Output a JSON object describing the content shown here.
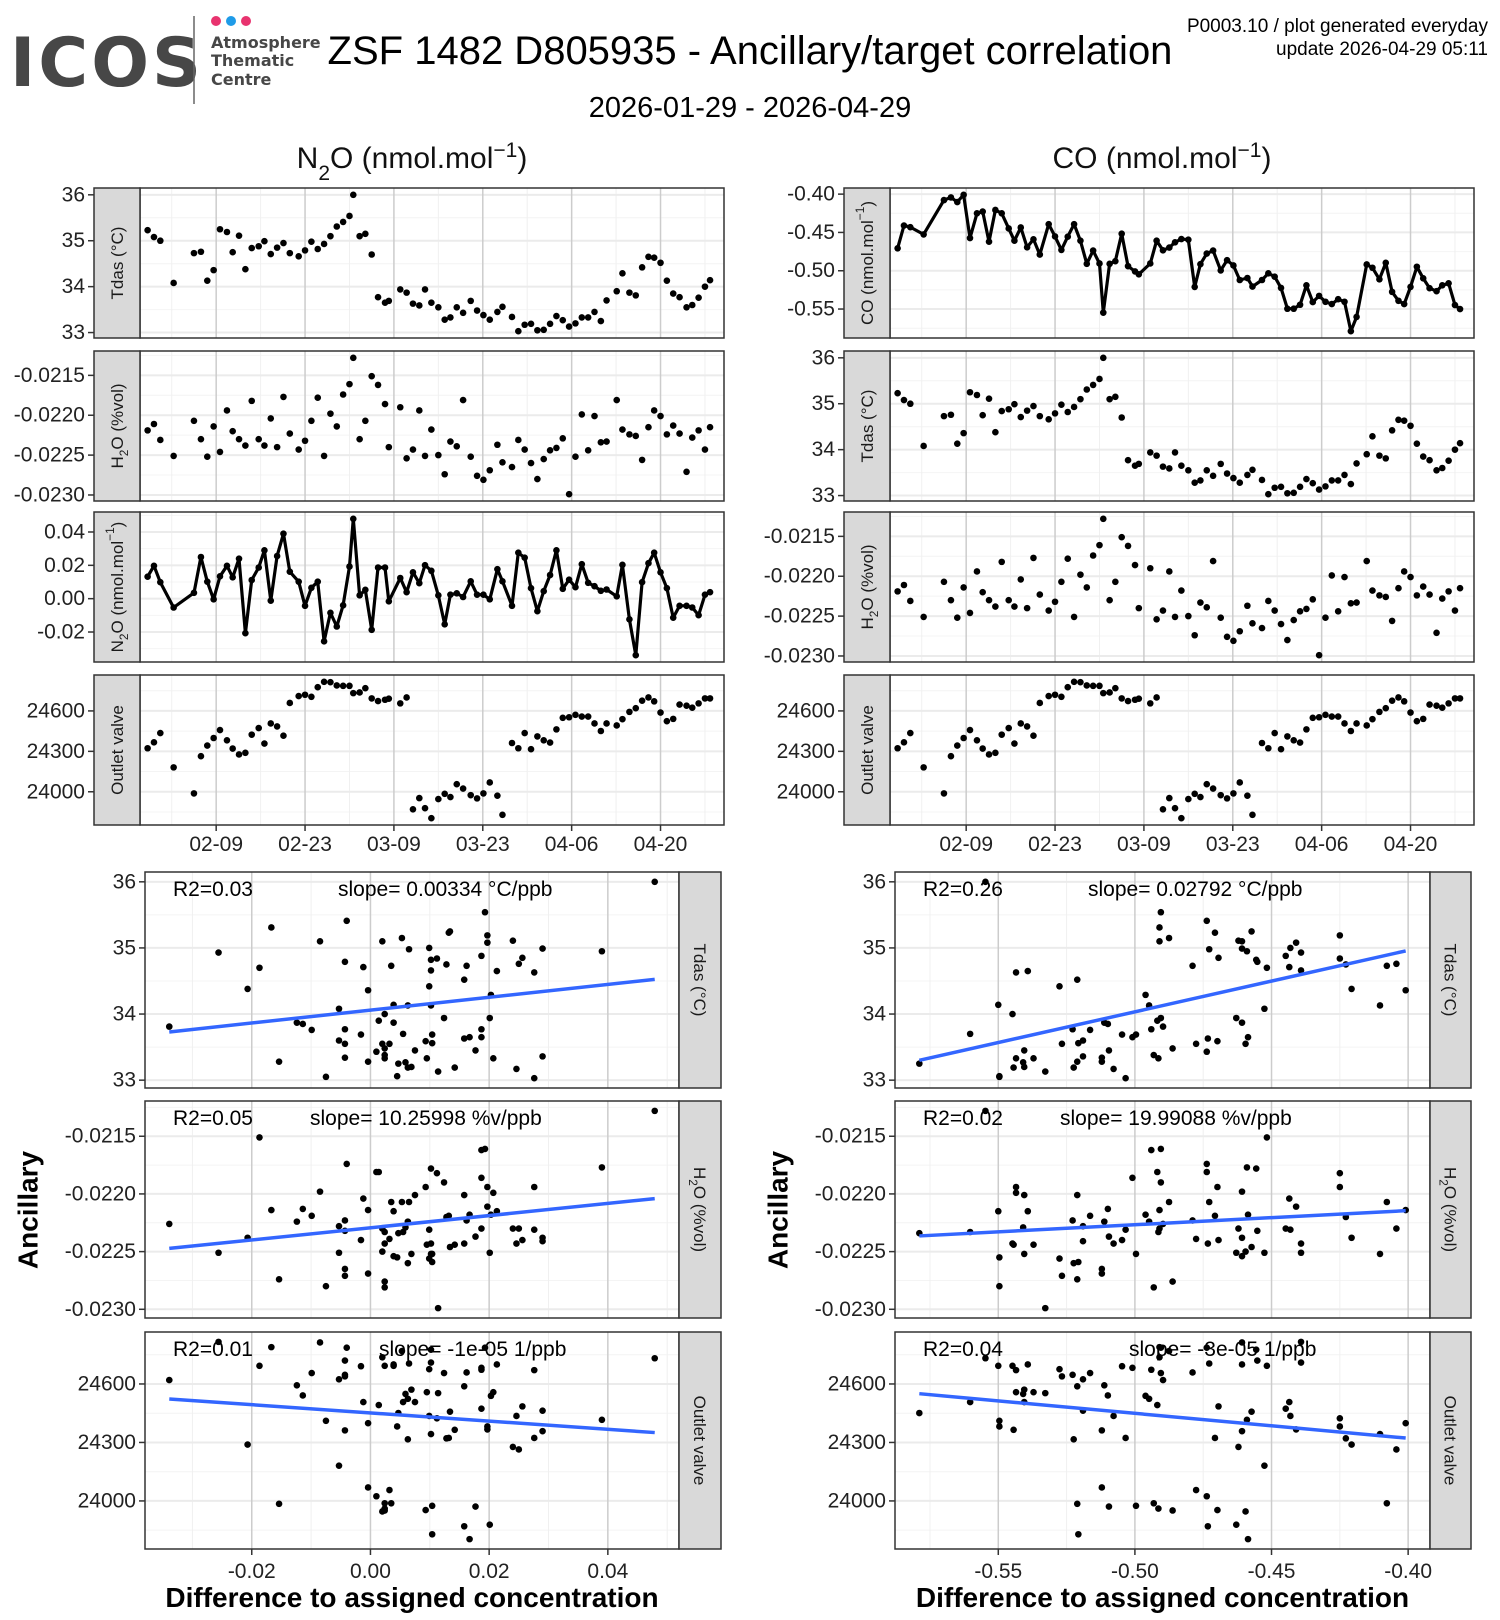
{
  "header": {
    "logo_text": "ICOS",
    "logo_sub": [
      "Atmosphere",
      "Thematic",
      "Centre"
    ],
    "title": "ZSF 1482 D805935 - Ancillary/target correlation",
    "subtitle": "2026-01-29 - 2026-04-29",
    "meta_line1": "P0003.10 / plot generated everyday",
    "meta_line2": "update  2026-04-29 05:11"
  },
  "colors": {
    "logo_dot_pink": "#e8336f",
    "logo_dot_blue": "#1e9be8",
    "fit_line": "#3366ff",
    "strip_bg": "#d9d9d9",
    "grid_major": "#ebebeb",
    "grid_vertical_major": "#cccccc",
    "points": "#000000"
  },
  "chart_data": {
    "type": "line",
    "start_date": "2026-01-29",
    "x_range_days": [
      -1,
      91
    ],
    "x_ticks": [
      {
        "day": 11,
        "label": "02-09"
      },
      {
        "day": 25,
        "label": "02-23"
      },
      {
        "day": 39,
        "label": "03-09"
      },
      {
        "day": 53,
        "label": "03-23"
      },
      {
        "day": 67,
        "label": "04-06"
      },
      {
        "day": 81,
        "label": "04-20"
      }
    ],
    "days": [
      0.2,
      1.2,
      2.2,
      4.3,
      7.5,
      8.6,
      9.6,
      10.6,
      11.6,
      12.7,
      13.6,
      14.6,
      15.6,
      16.6,
      17.7,
      18.6,
      19.6,
      20.6,
      21.6,
      22.6,
      24.0,
      25.0,
      26.0,
      27.0,
      28.0,
      29.0,
      30.0,
      31.0,
      32.0,
      32.6,
      33.6,
      34.5,
      35.5,
      36.5,
      37.6,
      38.2,
      40.0,
      41.0,
      42.0,
      43.0,
      43.9,
      44.9,
      46.0,
      47.0,
      47.9,
      48.9,
      49.9,
      51.1,
      52.1,
      53.1,
      54.1,
      55.3,
      56.1,
      57.6,
      58.6,
      59.6,
      60.6,
      61.6,
      62.6,
      63.6,
      64.6,
      65.6,
      66.6,
      67.6,
      68.6,
      69.6,
      70.6,
      71.6,
      72.5,
      74.1,
      75.0,
      76.1,
      77.1,
      78.1,
      79.1,
      80.0,
      81.0,
      82.0,
      83.0,
      84.0,
      85.1,
      86.0,
      87.0,
      88.0,
      88.8
    ],
    "ancillary": [
      {
        "key": "tdas",
        "strip": [
          {
            "t": "Tdas (°C)"
          }
        ],
        "ticks": [
          33,
          34,
          35,
          36
        ],
        "tick_labels": [
          "33",
          "34",
          "35",
          "36"
        ],
        "values": [
          35.23,
          35.08,
          35.0,
          34.08,
          34.73,
          34.76,
          34.13,
          34.36,
          35.25,
          35.19,
          34.75,
          35.11,
          34.38,
          34.84,
          34.88,
          34.99,
          34.71,
          34.85,
          34.95,
          34.73,
          34.66,
          34.79,
          34.98,
          34.82,
          34.93,
          35.1,
          35.31,
          35.41,
          35.54,
          36.0,
          35.1,
          35.15,
          34.7,
          33.77,
          33.65,
          33.69,
          33.94,
          33.87,
          33.63,
          33.59,
          33.94,
          33.65,
          33.55,
          33.28,
          33.33,
          33.55,
          33.43,
          33.69,
          33.48,
          33.38,
          33.28,
          33.45,
          33.56,
          33.34,
          33.03,
          33.17,
          33.19,
          33.05,
          33.06,
          33.19,
          33.36,
          33.27,
          33.13,
          33.2,
          33.33,
          33.33,
          33.45,
          33.25,
          33.7,
          33.9,
          34.29,
          33.87,
          33.81,
          34.42,
          34.65,
          34.63,
          34.52,
          34.13,
          33.85,
          33.77,
          33.55,
          33.6,
          33.76,
          34.0,
          34.14
        ]
      },
      {
        "key": "h2o",
        "strip": [
          {
            "t": "H"
          },
          {
            "t": "2",
            "sub": true
          },
          {
            "t": "O (%vol)"
          }
        ],
        "ticks": [
          -0.023,
          -0.0225,
          -0.022,
          -0.0215
        ],
        "tick_labels": [
          "-0.0230",
          "-0.0225",
          "-0.0220",
          "-0.0215"
        ],
        "values": [
          -0.02219,
          -0.02211,
          -0.02231,
          -0.02251,
          -0.02207,
          -0.0223,
          -0.02252,
          -0.02214,
          -0.02246,
          -0.02194,
          -0.0222,
          -0.0223,
          -0.02238,
          -0.02182,
          -0.0223,
          -0.02238,
          -0.02204,
          -0.0224,
          -0.02177,
          -0.02223,
          -0.02243,
          -0.02232,
          -0.02207,
          -0.02178,
          -0.02251,
          -0.02198,
          -0.02214,
          -0.02174,
          -0.02161,
          -0.02128,
          -0.0223,
          -0.02207,
          -0.02151,
          -0.02162,
          -0.02186,
          -0.0224,
          -0.0219,
          -0.02254,
          -0.02243,
          -0.02194,
          -0.02251,
          -0.02218,
          -0.0225,
          -0.02274,
          -0.02233,
          -0.02239,
          -0.02181,
          -0.02252,
          -0.02276,
          -0.02281,
          -0.02269,
          -0.02237,
          -0.02259,
          -0.02265,
          -0.02231,
          -0.02243,
          -0.0226,
          -0.0228,
          -0.02255,
          -0.02244,
          -0.02241,
          -0.02229,
          -0.02299,
          -0.02252,
          -0.02199,
          -0.02244,
          -0.02201,
          -0.02234,
          -0.02233,
          -0.02181,
          -0.02218,
          -0.02224,
          -0.02226,
          -0.02256,
          -0.02215,
          -0.02194,
          -0.02201,
          -0.02224,
          -0.02213,
          -0.02223,
          -0.02271,
          -0.02228,
          -0.02219,
          -0.02243,
          -0.02215
        ]
      },
      {
        "key": "outlet",
        "strip": [
          {
            "t": "Outlet valve"
          }
        ],
        "ticks": [
          24000,
          24300,
          24600
        ],
        "tick_labels": [
          "24000",
          "24300",
          "24600"
        ],
        "values": [
          24323,
          24367,
          24436,
          24181,
          23988,
          24264,
          24343,
          24399,
          24458,
          24382,
          24321,
          24277,
          24289,
          24424,
          24473,
          24358,
          24507,
          24485,
          24416,
          24659,
          24710,
          24720,
          24705,
          24776,
          24816,
          24813,
          24789,
          24786,
          24786,
          24732,
          24737,
          24769,
          24693,
          24673,
          24683,
          24691,
          24656,
          24700,
          23870,
          23953,
          23878,
          23804,
          23946,
          23985,
          23961,
          24056,
          24024,
          23975,
          23951,
          23988,
          24069,
          23971,
          23829,
          24362,
          24323,
          24436,
          24316,
          24411,
          24382,
          24365,
          24463,
          24549,
          24553,
          24571,
          24558,
          24558,
          24507,
          24451,
          24507,
          24492,
          24539,
          24593,
          24620,
          24676,
          24700,
          24671,
          24588,
          24524,
          24541,
          24647,
          24639,
          24624,
          24656,
          24693,
          24693
        ]
      }
    ],
    "targets": [
      {
        "key": "n2o",
        "title": [
          {
            "t": "N"
          },
          {
            "t": "2",
            "sub": true
          },
          {
            "t": "O (nmol.mol"
          },
          {
            "t": "−1",
            "sup": true
          },
          {
            "t": ")"
          }
        ],
        "strip": [
          {
            "t": "N"
          },
          {
            "t": "2",
            "sub": true
          },
          {
            "t": "O (nmol.mol"
          },
          {
            "t": "−1",
            "sup": true
          },
          {
            "t": ")"
          }
        ],
        "ticks": [
          -0.02,
          0.0,
          0.02,
          0.04
        ],
        "tick_labels": [
          "-0.02",
          "0.00",
          "0.02",
          "0.04"
        ],
        "scatter_ticks": [
          -0.02,
          0.0,
          0.02,
          0.04
        ],
        "scatter_tick_labels": [
          "-0.02",
          "0.00",
          "0.02",
          "0.04"
        ],
        "values": [
          0.0132,
          0.0197,
          0.0099,
          -0.0053,
          0.0035,
          0.025,
          0.0102,
          -0.0004,
          0.0134,
          0.0197,
          0.0128,
          0.024,
          -0.0207,
          0.0112,
          0.0187,
          0.029,
          -0.0012,
          0.0256,
          0.039,
          0.0162,
          0.0102,
          -0.0043,
          0.0065,
          0.0102,
          -0.0256,
          -0.0085,
          -0.0167,
          -0.004,
          0.0193,
          0.0479,
          0.002,
          0.0053,
          -0.0187,
          0.0187,
          0.0187,
          -0.0016,
          0.0124,
          0.0039,
          0.0158,
          0.0093,
          0.0201,
          0.0167,
          0.002,
          -0.0154,
          0.0024,
          0.0032,
          0.001,
          0.0104,
          0.0024,
          0.0024,
          -0.0004,
          0.0177,
          0.0104,
          -0.0043,
          0.0276,
          0.0246,
          0.0063,
          -0.0075,
          0.0045,
          0.0142,
          0.029,
          0.0059,
          0.0114,
          0.0069,
          0.0207,
          0.0095,
          0.0075,
          0.0047,
          0.0055,
          0.0014,
          0.0203,
          -0.0124,
          -0.0339,
          0.0099,
          0.0213,
          0.0276,
          0.0158,
          0.0063,
          -0.0114,
          -0.0043,
          -0.0043,
          -0.0053,
          -0.0099,
          0.0024,
          0.0039
        ],
        "fits": [
          {
            "r2": "R2=0.03",
            "slope": "slope= 0.00334 °C/ppb"
          },
          {
            "r2": "R2=0.05",
            "slope": "slope= 10.25998 %v/ppb"
          },
          {
            "r2": "R2=0.01",
            "slope": "slope= -1e-05 1/ppb"
          }
        ]
      },
      {
        "key": "co",
        "title": [
          {
            "t": "CO (nmol.mol"
          },
          {
            "t": "−1",
            "sup": true
          },
          {
            "t": ")"
          }
        ],
        "strip": [
          {
            "t": "CO (nmol.mol"
          },
          {
            "t": "−1",
            "sup": true
          },
          {
            "t": ")"
          }
        ],
        "ticks": [
          -0.55,
          -0.5,
          -0.45,
          -0.4
        ],
        "tick_labels": [
          "-0.55",
          "-0.50",
          "-0.45",
          "-0.40"
        ],
        "scatter_ticks": [
          -0.55,
          -0.5,
          -0.45,
          -0.4
        ],
        "scatter_tick_labels": [
          "-0.55",
          "-0.50",
          "-0.45",
          "-0.40"
        ],
        "values": [
          -0.4707,
          -0.441,
          -0.4431,
          -0.4526,
          -0.4078,
          -0.4043,
          -0.4103,
          -0.4009,
          -0.4573,
          -0.425,
          -0.4228,
          -0.4621,
          -0.4207,
          -0.425,
          -0.4448,
          -0.4608,
          -0.4435,
          -0.4694,
          -0.459,
          -0.4789,
          -0.4392,
          -0.4552,
          -0.4728,
          -0.4556,
          -0.4392,
          -0.4608,
          -0.491,
          -0.4737,
          -0.4905,
          -0.5547,
          -0.491,
          -0.4875,
          -0.4517,
          -0.494,
          -0.5009,
          -0.5047,
          -0.4905,
          -0.4608,
          -0.4733,
          -0.4698,
          -0.4629,
          -0.4586,
          -0.4595,
          -0.5211,
          -0.4914,
          -0.4776,
          -0.4737,
          -0.4996,
          -0.4862,
          -0.4931,
          -0.5121,
          -0.5095,
          -0.5207,
          -0.5121,
          -0.5034,
          -0.5078,
          -0.5224,
          -0.5496,
          -0.5496,
          -0.5444,
          -0.519,
          -0.5409,
          -0.5328,
          -0.5405,
          -0.5435,
          -0.5371,
          -0.5405,
          -0.5789,
          -0.5603,
          -0.4918,
          -0.4961,
          -0.5112,
          -0.4897,
          -0.5276,
          -0.5392,
          -0.5435,
          -0.5211,
          -0.4948,
          -0.5099,
          -0.5228,
          -0.5267,
          -0.519,
          -0.5164,
          -0.5448,
          -0.55
        ],
        "fits": [
          {
            "r2": "R2=0.26",
            "slope": "slope= 0.02792 °C/ppb"
          },
          {
            "r2": "R2=0.02",
            "slope": "slope= 19.99088 %v/ppb"
          },
          {
            "r2": "R2=0.04",
            "slope": "slope= -3e-05 1/ppb"
          }
        ]
      }
    ],
    "scatter_xlabel": "Difference to assigned concentration",
    "scatter_ylabel": "Ancillary"
  }
}
